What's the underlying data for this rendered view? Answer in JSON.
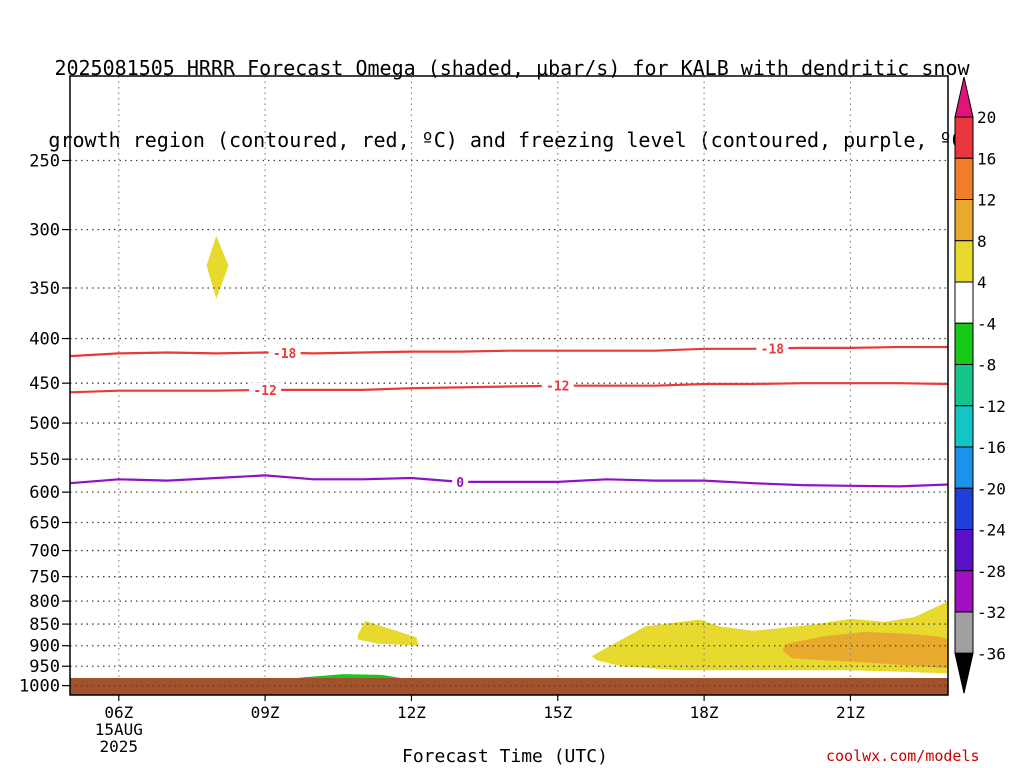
{
  "title_line1": "2025081505 HRRR Forecast Omega (shaded, μbar/s) for KALB with dendritic snow",
  "title_line2": "growth region (contoured, red, ºC) and freezing level (contoured, purple, ºC)",
  "credit": "coolwx.com/models",
  "chart_data": {
    "type": "contour",
    "xlabel": "Forecast Time (UTC)",
    "x_ticks": [
      "06Z",
      "09Z",
      "12Z",
      "15Z",
      "18Z",
      "21Z"
    ],
    "x_tick_hours": [
      6,
      9,
      12,
      15,
      18,
      21
    ],
    "x_range_hours": [
      5,
      23
    ],
    "date_label": [
      "15AUG",
      "2025"
    ],
    "y_ticks": [
      250,
      300,
      350,
      400,
      450,
      500,
      550,
      600,
      650,
      700,
      750,
      800,
      850,
      900,
      950,
      1000
    ],
    "y_units": "hPa",
    "y_scale": "log-pressure",
    "y_range": [
      200,
      1025
    ],
    "grid": true,
    "colorbar": {
      "labels": [
        "20",
        "16",
        "12",
        "8",
        "4",
        "-4",
        "-8",
        "-12",
        "-16",
        "-20",
        "-24",
        "-28",
        "-32",
        "-36"
      ],
      "bins": [
        {
          "color": "#e8373f"
        },
        {
          "color": "#f07f2a"
        },
        {
          "color": "#e7aa2e"
        },
        {
          "color": "#e7d92e"
        },
        {
          "color": "#ffffff"
        },
        {
          "color": "#19c919"
        },
        {
          "color": "#15c48b"
        },
        {
          "color": "#15c4c4"
        },
        {
          "color": "#1a93e8"
        },
        {
          "color": "#1f3fd8"
        },
        {
          "color": "#5a10c8"
        },
        {
          "color": "#a010c0"
        },
        {
          "color": "#a0a0a0"
        }
      ],
      "top_arrow_color": "#e0157a",
      "bottom_arrow_color": "#000000"
    },
    "contours": [
      {
        "label": "-18",
        "color": "#e83a3a",
        "label_hours": [
          9.4,
          19.4
        ],
        "points": [
          [
            5,
            419
          ],
          [
            6,
            416
          ],
          [
            7,
            415
          ],
          [
            8,
            416
          ],
          [
            9,
            415
          ],
          [
            10,
            416
          ],
          [
            11,
            415
          ],
          [
            12,
            414
          ],
          [
            13,
            414
          ],
          [
            14,
            413
          ],
          [
            15,
            413
          ],
          [
            16,
            413
          ],
          [
            17,
            413
          ],
          [
            18,
            411
          ],
          [
            19,
            411
          ],
          [
            20,
            410
          ],
          [
            21,
            410
          ],
          [
            22,
            409
          ],
          [
            23,
            409
          ]
        ]
      },
      {
        "label": "-12",
        "color": "#e83a3a",
        "label_hours": [
          9.0,
          15.0
        ],
        "points": [
          [
            5,
            461
          ],
          [
            6,
            459
          ],
          [
            7,
            459
          ],
          [
            8,
            459
          ],
          [
            9,
            458
          ],
          [
            10,
            458
          ],
          [
            11,
            458
          ],
          [
            12,
            456
          ],
          [
            13,
            455
          ],
          [
            14,
            454
          ],
          [
            15,
            453
          ],
          [
            16,
            453
          ],
          [
            17,
            453
          ],
          [
            18,
            451
          ],
          [
            19,
            451
          ],
          [
            20,
            450
          ],
          [
            21,
            450
          ],
          [
            22,
            450
          ],
          [
            23,
            451
          ]
        ]
      },
      {
        "label": "0",
        "color": "#9012c4",
        "label_hours": [
          13.0
        ],
        "points": [
          [
            5,
            586
          ],
          [
            6,
            580
          ],
          [
            7,
            582
          ],
          [
            8,
            578
          ],
          [
            9,
            574
          ],
          [
            10,
            580
          ],
          [
            11,
            580
          ],
          [
            12,
            578
          ],
          [
            13,
            584
          ],
          [
            14,
            584
          ],
          [
            15,
            584
          ],
          [
            16,
            580
          ],
          [
            17,
            582
          ],
          [
            18,
            582
          ],
          [
            19,
            586
          ],
          [
            20,
            589
          ],
          [
            21,
            590
          ],
          [
            22,
            591
          ],
          [
            23,
            588
          ]
        ]
      }
    ],
    "shaded_regions": [
      {
        "value_range": [
          4,
          8
        ],
        "color": "#e7d92e",
        "points": [
          [
            8.0,
            305
          ],
          [
            8.25,
            330
          ],
          [
            8.0,
            360
          ],
          [
            7.8,
            330
          ]
        ]
      },
      {
        "value_range": [
          4,
          8
        ],
        "color": "#e7d92e",
        "points": [
          [
            10.9,
            875
          ],
          [
            11.05,
            843
          ],
          [
            12.1,
            880
          ],
          [
            12.15,
            900
          ],
          [
            11.3,
            895
          ],
          [
            10.9,
            885
          ]
        ]
      },
      {
        "value_range": [
          4,
          8
        ],
        "color": "#e7d92e",
        "points": [
          [
            15.7,
            925
          ],
          [
            16.0,
            905
          ],
          [
            16.8,
            855
          ],
          [
            17.9,
            840
          ],
          [
            18.3,
            855
          ],
          [
            19.0,
            865
          ],
          [
            19.5,
            860
          ],
          [
            20.3,
            850
          ],
          [
            21.0,
            838
          ],
          [
            21.7,
            845
          ],
          [
            22.3,
            835
          ],
          [
            22.7,
            815
          ],
          [
            23.0,
            800
          ],
          [
            23.0,
            968
          ],
          [
            22.3,
            965
          ],
          [
            21.0,
            960
          ],
          [
            20.0,
            960
          ],
          [
            19.0,
            960
          ],
          [
            17.5,
            960
          ],
          [
            16.3,
            950
          ],
          [
            15.8,
            935
          ]
        ]
      },
      {
        "value_range": [
          8,
          12
        ],
        "color": "#e7aa2e",
        "points": [
          [
            19.7,
            895
          ],
          [
            20.5,
            877
          ],
          [
            21.3,
            868
          ],
          [
            22.2,
            872
          ],
          [
            22.8,
            878
          ],
          [
            23.0,
            885
          ],
          [
            23.0,
            955
          ],
          [
            22.2,
            948
          ],
          [
            21.2,
            940
          ],
          [
            20.4,
            935
          ],
          [
            19.8,
            930
          ],
          [
            19.6,
            910
          ]
        ]
      },
      {
        "value_range": [
          -8,
          -4
        ],
        "color": "#19c919",
        "points": [
          [
            6.3,
            995
          ],
          [
            6.7,
            985
          ],
          [
            7.0,
            980
          ],
          [
            7.6,
            988
          ],
          [
            8.5,
            990
          ],
          [
            9.0,
            990
          ],
          [
            9.8,
            978
          ],
          [
            10.6,
            970
          ],
          [
            11.4,
            972
          ],
          [
            12.0,
            985
          ],
          [
            12.0,
            990
          ],
          [
            11.3,
            998
          ],
          [
            10.4,
            1003
          ],
          [
            9.5,
            1000
          ],
          [
            8.5,
            1000
          ],
          [
            7.5,
            1000
          ],
          [
            6.6,
            1000
          ]
        ]
      }
    ],
    "ground_color": "#a0522d"
  }
}
